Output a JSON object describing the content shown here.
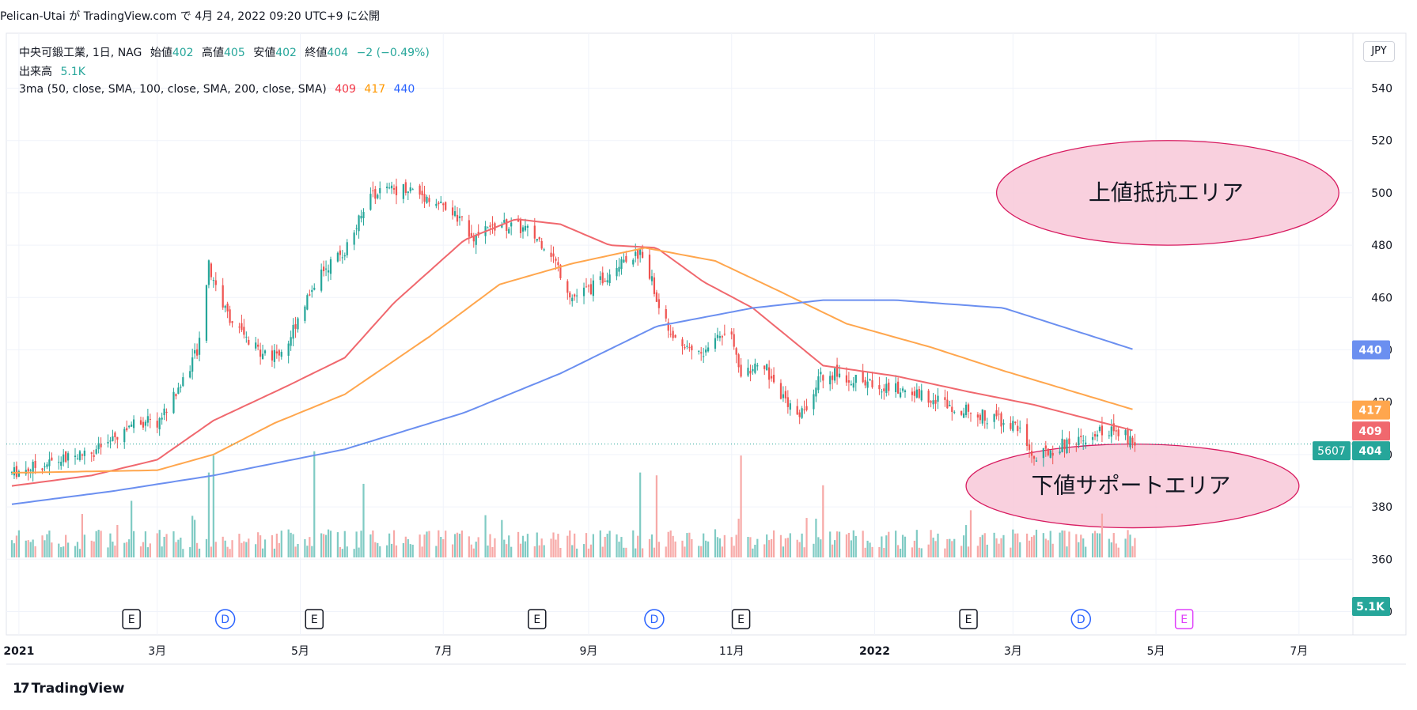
{
  "header": {
    "text": "Pelican-Utai が TradingView.com で 4月 24, 2022 09:20 UTC+9 に公開"
  },
  "legend": {
    "symbol": "中央可鍛工業, 1日, NAG",
    "open_label": "始値",
    "open": "402",
    "high_label": "高値",
    "high": "405",
    "low_label": "安値",
    "low": "402",
    "close_label": "終値",
    "close": "404",
    "change": "−2 (−0.49%)",
    "volume_label": "出来高",
    "volume": "5.1K",
    "ma_label": "3ma (50, close, SMA, 100, close, SMA, 200, close, SMA)",
    "ma50": "409",
    "ma100": "417",
    "ma200": "440"
  },
  "currency_button": "JPY",
  "footer": {
    "logo": "17",
    "brand": "TradingView"
  },
  "colors": {
    "up": "#26a69a",
    "down": "#ef5350",
    "vol_up": "#80cbc4",
    "vol_down": "#f7a9a7",
    "ma50": "#f0686e",
    "ma100": "#ffa64d",
    "ma200": "#6b8ff0",
    "zone_fill": "#f8c8d8",
    "zone_stroke": "#d81b60",
    "event_dividend": "#2962ff",
    "event_earnings": "#131722"
  },
  "chart_data": {
    "type": "candlestick",
    "title": "中央可鍛工業, 1日, NAG",
    "ylim": [
      335,
      545
    ],
    "y_ticks": [
      340,
      360,
      380,
      400,
      420,
      440,
      460,
      480,
      500,
      520,
      540
    ],
    "x_tick_labels": [
      {
        "label": "2021",
        "date": "2021-01-01",
        "bold": true
      },
      {
        "label": "3月",
        "date": "2021-03-01"
      },
      {
        "label": "5月",
        "date": "2021-05-01"
      },
      {
        "label": "7月",
        "date": "2021-07-01"
      },
      {
        "label": "9月",
        "date": "2021-09-01"
      },
      {
        "label": "11月",
        "date": "2021-11-01"
      },
      {
        "label": "2022",
        "date": "2022-01-01",
        "bold": true
      },
      {
        "label": "3月",
        "date": "2022-03-01"
      },
      {
        "label": "5月",
        "date": "2022-05-01"
      },
      {
        "label": "7月",
        "date": "2022-07-01"
      }
    ],
    "x_range": [
      "2020-12-29",
      "2022-07-24"
    ],
    "price_anchors": [
      [
        "2020-12-29",
        393
      ],
      [
        "2021-01-15",
        397
      ],
      [
        "2021-02-01",
        401
      ],
      [
        "2021-02-10",
        405
      ],
      [
        "2021-02-20",
        413
      ],
      [
        "2021-03-01",
        412
      ],
      [
        "2021-03-10",
        425
      ],
      [
        "2021-03-18",
        440
      ],
      [
        "2021-03-23",
        472
      ],
      [
        "2021-03-30",
        455
      ],
      [
        "2021-04-10",
        441
      ],
      [
        "2021-04-20",
        438
      ],
      [
        "2021-04-25",
        441
      ],
      [
        "2021-05-01",
        455
      ],
      [
        "2021-05-10",
        470
      ],
      [
        "2021-05-20",
        478
      ],
      [
        "2021-06-01",
        500
      ],
      [
        "2021-06-15",
        502
      ],
      [
        "2021-06-25",
        498
      ],
      [
        "2021-07-05",
        492
      ],
      [
        "2021-07-15",
        483
      ],
      [
        "2021-07-25",
        488
      ],
      [
        "2021-08-05",
        486
      ],
      [
        "2021-08-15",
        479
      ],
      [
        "2021-08-25",
        460
      ],
      [
        "2021-09-05",
        465
      ],
      [
        "2021-09-15",
        475
      ],
      [
        "2021-09-25",
        477
      ],
      [
        "2021-10-01",
        455
      ],
      [
        "2021-10-10",
        443
      ],
      [
        "2021-10-20",
        438
      ],
      [
        "2021-10-25",
        445
      ],
      [
        "2021-11-01",
        447
      ],
      [
        "2021-11-05",
        432
      ],
      [
        "2021-11-15",
        434
      ],
      [
        "2021-11-25",
        418
      ],
      [
        "2021-12-02",
        416
      ],
      [
        "2021-12-08",
        430
      ],
      [
        "2021-12-15",
        431
      ],
      [
        "2021-12-25",
        428
      ],
      [
        "2022-01-10",
        425
      ],
      [
        "2022-01-25",
        422
      ],
      [
        "2022-02-05",
        418
      ],
      [
        "2022-02-15",
        415
      ],
      [
        "2022-02-25",
        413
      ],
      [
        "2022-03-05",
        409
      ],
      [
        "2022-03-10",
        398
      ],
      [
        "2022-03-20",
        403
      ],
      [
        "2022-04-01",
        407
      ],
      [
        "2022-04-10",
        410
      ],
      [
        "2022-04-20",
        406
      ],
      [
        "2022-04-22",
        404
      ]
    ],
    "volume_ymax": 95000,
    "volume_spikes": [
      {
        "date": "2021-02-18",
        "value": 40000
      },
      {
        "date": "2021-03-23",
        "value": 60000
      },
      {
        "date": "2021-03-25",
        "value": 72000
      },
      {
        "date": "2021-05-07",
        "value": 75000
      },
      {
        "date": "2021-05-28",
        "value": 52000
      },
      {
        "date": "2021-09-23",
        "value": 60000
      },
      {
        "date": "2021-09-30",
        "value": 58000
      },
      {
        "date": "2021-11-05",
        "value": 72000
      },
      {
        "date": "2021-12-10",
        "value": 51000
      }
    ],
    "ma": [
      {
        "name": "MA50",
        "value": "409",
        "color_key": "ma50",
        "anchors": [
          [
            "2020-12-29",
            388
          ],
          [
            "2021-02-01",
            392
          ],
          [
            "2021-03-01",
            398
          ],
          [
            "2021-03-25",
            413
          ],
          [
            "2021-04-25",
            426
          ],
          [
            "2021-05-20",
            437
          ],
          [
            "2021-06-10",
            458
          ],
          [
            "2021-07-10",
            482
          ],
          [
            "2021-08-01",
            490
          ],
          [
            "2021-08-20",
            488
          ],
          [
            "2021-09-10",
            480
          ],
          [
            "2021-09-30",
            479
          ],
          [
            "2021-10-20",
            466
          ],
          [
            "2021-11-10",
            456
          ],
          [
            "2021-12-10",
            434
          ],
          [
            "2022-01-10",
            430
          ],
          [
            "2022-02-10",
            424
          ],
          [
            "2022-03-10",
            419
          ],
          [
            "2022-04-22",
            409
          ]
        ]
      },
      {
        "name": "MA100",
        "value": "417",
        "color_key": "ma100",
        "anchors": [
          [
            "2020-12-29",
            393
          ],
          [
            "2021-03-01",
            394
          ],
          [
            "2021-03-25",
            400
          ],
          [
            "2021-04-20",
            412
          ],
          [
            "2021-05-20",
            423
          ],
          [
            "2021-06-25",
            445
          ],
          [
            "2021-07-25",
            465
          ],
          [
            "2021-08-25",
            473
          ],
          [
            "2021-09-25",
            479
          ],
          [
            "2021-10-25",
            474
          ],
          [
            "2021-11-20",
            463
          ],
          [
            "2021-12-20",
            450
          ],
          [
            "2022-01-25",
            441
          ],
          [
            "2022-02-25",
            432
          ],
          [
            "2022-04-22",
            417
          ]
        ]
      },
      {
        "name": "MA200",
        "value": "440",
        "color_key": "ma200",
        "anchors": [
          [
            "2020-12-29",
            381
          ],
          [
            "2021-02-10",
            386
          ],
          [
            "2021-03-25",
            392
          ],
          [
            "2021-05-20",
            402
          ],
          [
            "2021-07-10",
            416
          ],
          [
            "2021-08-20",
            431
          ],
          [
            "2021-09-30",
            449
          ],
          [
            "2021-11-10",
            456
          ],
          [
            "2021-12-10",
            459
          ],
          [
            "2022-01-10",
            459
          ],
          [
            "2022-02-25",
            456
          ],
          [
            "2022-04-22",
            440
          ]
        ]
      }
    ],
    "price_labels": [
      {
        "value": 440,
        "text": "440",
        "color_key": "ma200"
      },
      {
        "value": 417,
        "text": "417",
        "color_key": "ma100"
      },
      {
        "value": 409,
        "text": "409",
        "color_key": "ma50"
      },
      {
        "value": 404,
        "text": "404",
        "color_key": "up"
      }
    ],
    "volume_price_label": "5.1K",
    "countdown_label": "5607",
    "last_price": 404,
    "zones": [
      {
        "label": "上値抵抗エリア",
        "center": {
          "date": "2022-05-06",
          "value": 500
        },
        "half_span_days": 73,
        "half_span_value": 20
      },
      {
        "label": "下値サポートエリア",
        "center": {
          "date": "2022-04-21",
          "value": 388
        },
        "half_span_days": 71,
        "half_span_value": 16
      }
    ],
    "events": [
      {
        "type": "E",
        "date": "2021-02-18"
      },
      {
        "type": "D",
        "date": "2021-03-30"
      },
      {
        "type": "E",
        "date": "2021-05-07"
      },
      {
        "type": "E",
        "date": "2021-08-10"
      },
      {
        "type": "D",
        "date": "2021-09-29"
      },
      {
        "type": "E",
        "date": "2021-11-05"
      },
      {
        "type": "E",
        "date": "2022-02-10"
      },
      {
        "type": "D",
        "date": "2022-03-30"
      },
      {
        "type": "E-upcoming",
        "date": "2022-05-13"
      }
    ]
  }
}
